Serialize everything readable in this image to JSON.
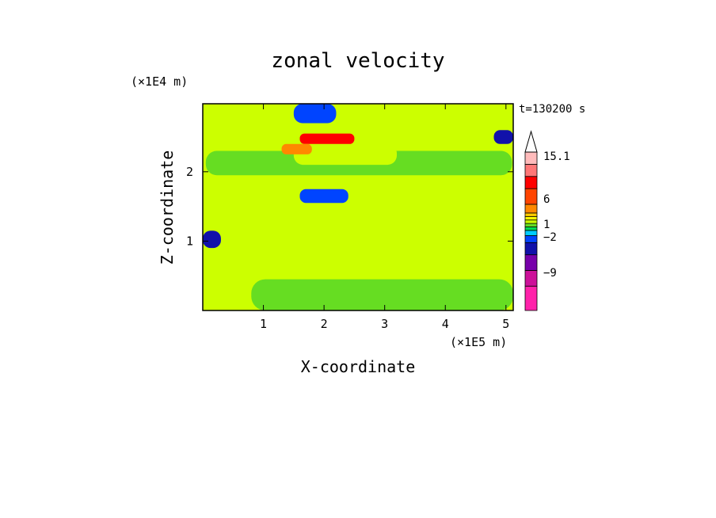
{
  "chart_data": {
    "type": "heatmap",
    "title": "zonal velocity",
    "xlabel": "X-coordinate",
    "ylabel": "Z-coordinate",
    "x_scale_label": "(×1E5 m)",
    "y_scale_label": "(×1E4 m)",
    "time_label": "t=130200 s",
    "xlim": [
      0,
      5.12
    ],
    "ylim": [
      0,
      2.98
    ],
    "x_ticks": [
      1,
      2,
      3,
      4,
      5
    ],
    "y_ticks": [
      1,
      2
    ],
    "x_tick_labels": [
      "1",
      "2",
      "3",
      "4",
      "5"
    ],
    "y_tick_labels": [
      "1",
      "2"
    ],
    "colorbar": {
      "levels": [
        {
          "color": "#ff22aa"
        },
        {
          "color": "#cc1199"
        },
        {
          "color": "#7700aa"
        },
        {
          "color": "#1111aa"
        },
        {
          "color": "#0044ff"
        },
        {
          "color": "#00ccff"
        },
        {
          "color": "#00dd55"
        },
        {
          "color": "#66dd22"
        },
        {
          "color": "#ccff00"
        },
        {
          "color": "#ffff00"
        },
        {
          "color": "#ffcc00"
        },
        {
          "color": "#ff8800"
        },
        {
          "color": "#ff4400"
        },
        {
          "color": "#ff0000"
        },
        {
          "color": "#ff7777"
        },
        {
          "color": "#ffbbbb"
        }
      ],
      "labels": [
        "15.1",
        "6",
        "1",
        "−2",
        "−9"
      ],
      "max_label": "15.1"
    },
    "field_regions": [
      {
        "x": [
          0,
          5.12
        ],
        "z": [
          0,
          2.98
        ],
        "value": 0.3
      },
      {
        "x": [
          0.05,
          5.1
        ],
        "z": [
          1.95,
          2.3
        ],
        "value": -0.5
      },
      {
        "x": [
          1.5,
          3.2
        ],
        "z": [
          2.1,
          2.4
        ],
        "value": 0.3
      },
      {
        "x": [
          1.6,
          2.5
        ],
        "z": [
          2.4,
          2.55
        ],
        "value": 7
      },
      {
        "x": [
          1.3,
          1.8
        ],
        "z": [
          2.25,
          2.4
        ],
        "value": 4
      },
      {
        "x": [
          1.6,
          2.4
        ],
        "z": [
          1.55,
          1.75
        ],
        "value": -4
      },
      {
        "x": [
          1.5,
          2.2
        ],
        "z": [
          2.7,
          2.98
        ],
        "value": -5
      },
      {
        "x": [
          0,
          0.3
        ],
        "z": [
          0.9,
          1.15
        ],
        "value": -6
      },
      {
        "x": [
          4.8,
          5.12
        ],
        "z": [
          2.4,
          2.6
        ],
        "value": -6
      },
      {
        "x": [
          0.8,
          5.12
        ],
        "z": [
          0.0,
          0.45
        ],
        "value": -0.5
      }
    ]
  }
}
